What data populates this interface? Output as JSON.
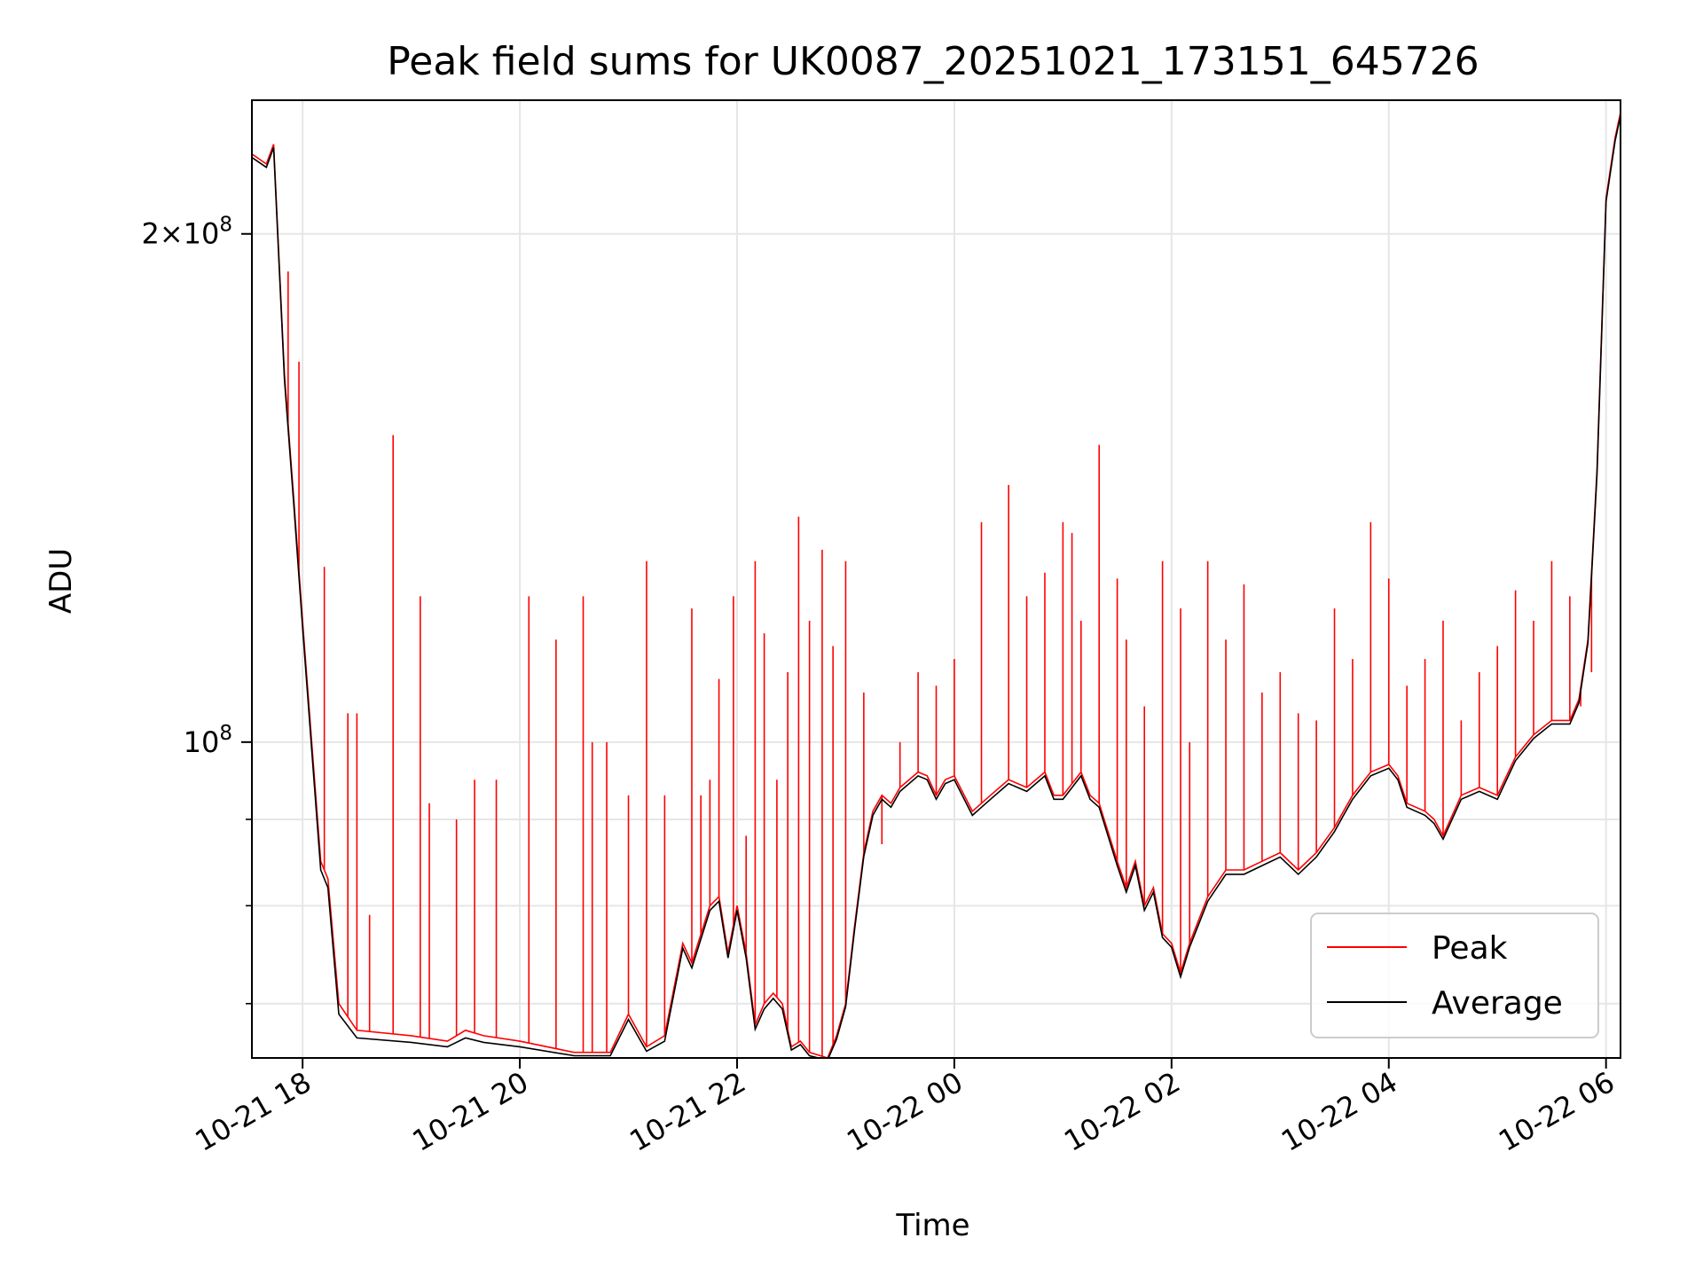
{
  "chart_data": {
    "type": "line",
    "title": "Peak field sums for UK0087_20251021_173151_645726",
    "xlabel": "Time",
    "ylabel": "ADU",
    "yscale": "log",
    "xlim": [
      "2025-10-21 17:32",
      "2025-10-22 06:08"
    ],
    "ylim": [
      65000000,
      240000000
    ],
    "grid": true,
    "legend_position": "bottom-right",
    "x_ticks": [
      {
        "value": "2025-10-21 18:00",
        "label": "10-21 18"
      },
      {
        "value": "2025-10-21 20:00",
        "label": "10-21 20"
      },
      {
        "value": "2025-10-21 22:00",
        "label": "10-21 22"
      },
      {
        "value": "2025-10-22 00:00",
        "label": "10-22 00"
      },
      {
        "value": "2025-10-22 02:00",
        "label": "10-22 02"
      },
      {
        "value": "2025-10-22 04:00",
        "label": "10-22 04"
      },
      {
        "value": "2025-10-22 06:00",
        "label": "10-22 06"
      }
    ],
    "y_major_ticks": [
      {
        "value": 100000000,
        "base": "10",
        "exp": "8",
        "mantissa": ""
      },
      {
        "value": 200000000,
        "base": "10",
        "exp": "8",
        "mantissa": "2"
      }
    ],
    "y_minor_ticks": [
      70000000,
      80000000,
      90000000
    ],
    "series": [
      {
        "name": "Peak",
        "color": "#ff0000",
        "x": [
          "2025-10-21 17:32",
          "2025-10-21 17:40",
          "2025-10-21 17:44",
          "2025-10-21 17:50",
          "2025-10-21 17:55",
          "2025-10-21 18:00",
          "2025-10-21 18:05",
          "2025-10-21 18:10",
          "2025-10-21 18:14",
          "2025-10-21 18:20",
          "2025-10-21 18:30",
          "2025-10-21 19:00",
          "2025-10-21 19:20",
          "2025-10-21 19:30",
          "2025-10-21 19:40",
          "2025-10-21 20:00",
          "2025-10-21 20:30",
          "2025-10-21 20:50",
          "2025-10-21 21:00",
          "2025-10-21 21:10",
          "2025-10-21 21:20",
          "2025-10-21 21:30",
          "2025-10-21 21:35",
          "2025-10-21 21:45",
          "2025-10-21 21:50",
          "2025-10-21 21:55",
          "2025-10-21 22:00",
          "2025-10-21 22:05",
          "2025-10-21 22:10",
          "2025-10-21 22:15",
          "2025-10-21 22:20",
          "2025-10-21 22:25",
          "2025-10-21 22:30",
          "2025-10-21 22:35",
          "2025-10-21 22:40",
          "2025-10-21 22:50",
          "2025-10-21 22:55",
          "2025-10-21 23:00",
          "2025-10-21 23:05",
          "2025-10-21 23:10",
          "2025-10-21 23:15",
          "2025-10-21 23:20",
          "2025-10-21 23:25",
          "2025-10-21 23:30",
          "2025-10-21 23:40",
          "2025-10-21 23:45",
          "2025-10-21 23:50",
          "2025-10-21 23:55",
          "2025-10-22 00:00",
          "2025-10-22 00:10",
          "2025-10-22 00:15",
          "2025-10-22 00:20",
          "2025-10-22 00:30",
          "2025-10-22 00:40",
          "2025-10-22 00:50",
          "2025-10-22 00:55",
          "2025-10-22 01:00",
          "2025-10-22 01:10",
          "2025-10-22 01:15",
          "2025-10-22 01:20",
          "2025-10-22 01:30",
          "2025-10-22 01:35",
          "2025-10-22 01:40",
          "2025-10-22 01:45",
          "2025-10-22 01:50",
          "2025-10-22 01:55",
          "2025-10-22 02:00",
          "2025-10-22 02:05",
          "2025-10-22 02:10",
          "2025-10-22 02:20",
          "2025-10-22 02:30",
          "2025-10-22 02:40",
          "2025-10-22 02:50",
          "2025-10-22 03:00",
          "2025-10-22 03:10",
          "2025-10-22 03:20",
          "2025-10-22 03:30",
          "2025-10-22 03:35",
          "2025-10-22 03:40",
          "2025-10-22 03:50",
          "2025-10-22 04:00",
          "2025-10-22 04:05",
          "2025-10-22 04:10",
          "2025-10-22 04:20",
          "2025-10-22 04:25",
          "2025-10-22 04:30",
          "2025-10-22 04:40",
          "2025-10-22 04:50",
          "2025-10-22 05:00",
          "2025-10-22 05:10",
          "2025-10-22 05:20",
          "2025-10-22 05:30",
          "2025-10-22 05:40",
          "2025-10-22 05:45",
          "2025-10-22 05:50",
          "2025-10-22 05:55",
          "2025-10-22 06:00",
          "2025-10-22 06:05",
          "2025-10-22 06:08"
        ],
        "y": [
          223000000,
          220000000,
          226000000,
          165000000,
          140000000,
          118000000,
          100000000,
          85000000,
          83000000,
          70000000,
          67500000,
          67000000,
          66500000,
          67500000,
          67000000,
          66500000,
          65500000,
          65500000,
          69000000,
          66000000,
          67000000,
          76000000,
          74000000,
          80000000,
          81000000,
          75000000,
          80000000,
          75000000,
          68000000,
          70000000,
          71000000,
          70000000,
          66000000,
          66500000,
          65500000,
          65000000,
          67000000,
          70000000,
          78000000,
          86000000,
          91000000,
          93000000,
          92000000,
          94000000,
          96000000,
          95500000,
          93000000,
          95000000,
          95500000,
          91000000,
          92000000,
          93000000,
          95000000,
          94000000,
          96000000,
          93000000,
          93000000,
          96000000,
          93000000,
          92000000,
          85000000,
          82000000,
          85000000,
          80000000,
          82000000,
          77000000,
          76000000,
          73000000,
          76000000,
          81000000,
          84000000,
          84000000,
          85000000,
          86000000,
          84000000,
          86000000,
          89000000,
          91000000,
          93000000,
          96000000,
          97000000,
          95500000,
          92000000,
          91000000,
          90000000,
          88000000,
          93000000,
          94000000,
          93000000,
          98000000,
          101000000,
          103000000,
          103000000,
          106000000,
          115000000,
          145000000,
          210000000,
          228000000,
          236000000
        ]
      },
      {
        "name": "Average",
        "color": "#000000",
        "x": [
          "2025-10-21 17:32",
          "2025-10-21 17:40",
          "2025-10-21 17:44",
          "2025-10-21 17:50",
          "2025-10-21 17:55",
          "2025-10-21 18:00",
          "2025-10-21 18:05",
          "2025-10-21 18:10",
          "2025-10-21 18:14",
          "2025-10-21 18:20",
          "2025-10-21 18:30",
          "2025-10-21 19:00",
          "2025-10-21 19:20",
          "2025-10-21 19:30",
          "2025-10-21 19:40",
          "2025-10-21 20:00",
          "2025-10-21 20:30",
          "2025-10-21 20:50",
          "2025-10-21 21:00",
          "2025-10-21 21:10",
          "2025-10-21 21:20",
          "2025-10-21 21:30",
          "2025-10-21 21:35",
          "2025-10-21 21:45",
          "2025-10-21 21:50",
          "2025-10-21 21:55",
          "2025-10-21 22:00",
          "2025-10-21 22:05",
          "2025-10-21 22:10",
          "2025-10-21 22:15",
          "2025-10-21 22:20",
          "2025-10-21 22:25",
          "2025-10-21 22:30",
          "2025-10-21 22:35",
          "2025-10-21 22:40",
          "2025-10-21 22:50",
          "2025-10-21 22:55",
          "2025-10-21 23:00",
          "2025-10-21 23:05",
          "2025-10-21 23:10",
          "2025-10-21 23:15",
          "2025-10-21 23:20",
          "2025-10-21 23:25",
          "2025-10-21 23:30",
          "2025-10-21 23:40",
          "2025-10-21 23:45",
          "2025-10-21 23:50",
          "2025-10-21 23:55",
          "2025-10-22 00:00",
          "2025-10-22 00:10",
          "2025-10-22 00:15",
          "2025-10-22 00:20",
          "2025-10-22 00:30",
          "2025-10-22 00:40",
          "2025-10-22 00:50",
          "2025-10-22 00:55",
          "2025-10-22 01:00",
          "2025-10-22 01:10",
          "2025-10-22 01:15",
          "2025-10-22 01:20",
          "2025-10-22 01:30",
          "2025-10-22 01:35",
          "2025-10-22 01:40",
          "2025-10-22 01:45",
          "2025-10-22 01:50",
          "2025-10-22 01:55",
          "2025-10-22 02:00",
          "2025-10-22 02:05",
          "2025-10-22 02:10",
          "2025-10-22 02:20",
          "2025-10-22 02:30",
          "2025-10-22 02:40",
          "2025-10-22 02:50",
          "2025-10-22 03:00",
          "2025-10-22 03:10",
          "2025-10-22 03:20",
          "2025-10-22 03:30",
          "2025-10-22 03:35",
          "2025-10-22 03:40",
          "2025-10-22 03:50",
          "2025-10-22 04:00",
          "2025-10-22 04:05",
          "2025-10-22 04:10",
          "2025-10-22 04:20",
          "2025-10-22 04:25",
          "2025-10-22 04:30",
          "2025-10-22 04:40",
          "2025-10-22 04:50",
          "2025-10-22 05:00",
          "2025-10-22 05:10",
          "2025-10-22 05:20",
          "2025-10-22 05:30",
          "2025-10-22 05:40",
          "2025-10-22 05:45",
          "2025-10-22 05:50",
          "2025-10-22 05:55",
          "2025-10-22 06:00",
          "2025-10-22 06:05",
          "2025-10-22 06:08"
        ],
        "y": [
          222000000,
          219000000,
          225000000,
          164000000,
          139000000,
          117000000,
          99000000,
          84000000,
          82000000,
          69000000,
          66800000,
          66400000,
          66000000,
          66800000,
          66400000,
          66000000,
          65200000,
          65200000,
          68500000,
          65600000,
          66500000,
          75500000,
          73500000,
          79500000,
          80500000,
          74500000,
          79500000,
          74500000,
          67600000,
          69500000,
          70500000,
          69500000,
          65700000,
          66200000,
          65200000,
          64800000,
          66700000,
          69700000,
          77600000,
          85600000,
          90500000,
          92500000,
          91500000,
          93500000,
          95500000,
          95000000,
          92500000,
          94500000,
          95000000,
          90500000,
          91500000,
          92500000,
          94500000,
          93500000,
          95500000,
          92500000,
          92500000,
          95500000,
          92500000,
          91500000,
          84500000,
          81500000,
          84500000,
          79500000,
          81500000,
          76600000,
          75600000,
          72600000,
          75600000,
          80500000,
          83500000,
          83500000,
          84500000,
          85500000,
          83500000,
          85500000,
          88500000,
          90500000,
          92500000,
          95500000,
          96500000,
          95000000,
          91500000,
          90500000,
          89500000,
          87600000,
          92500000,
          93500000,
          92500000,
          97500000,
          100500000,
          102500000,
          102500000,
          105500000,
          114500000,
          144000000,
          209000000,
          227000000,
          235000000
        ]
      }
    ],
    "peak_spikes": [
      {
        "x": "2025-10-21 17:52",
        "y": 190000000
      },
      {
        "x": "2025-10-21 17:58",
        "y": 168000000
      },
      {
        "x": "2025-10-21 18:12",
        "y": 127000000
      },
      {
        "x": "2025-10-21 18:25",
        "y": 104000000
      },
      {
        "x": "2025-10-21 18:30",
        "y": 104000000
      },
      {
        "x": "2025-10-21 18:37",
        "y": 79000000
      },
      {
        "x": "2025-10-21 18:50",
        "y": 152000000
      },
      {
        "x": "2025-10-21 19:05",
        "y": 122000000
      },
      {
        "x": "2025-10-21 19:10",
        "y": 92000000
      },
      {
        "x": "2025-10-21 19:25",
        "y": 90000000
      },
      {
        "x": "2025-10-21 19:35",
        "y": 95000000
      },
      {
        "x": "2025-10-21 19:47",
        "y": 95000000
      },
      {
        "x": "2025-10-21 20:05",
        "y": 122000000
      },
      {
        "x": "2025-10-21 20:20",
        "y": 115000000
      },
      {
        "x": "2025-10-21 20:35",
        "y": 122000000
      },
      {
        "x": "2025-10-21 20:40",
        "y": 100000000
      },
      {
        "x": "2025-10-21 20:48",
        "y": 100000000
      },
      {
        "x": "2025-10-21 21:00",
        "y": 93000000
      },
      {
        "x": "2025-10-21 21:10",
        "y": 128000000
      },
      {
        "x": "2025-10-21 21:20",
        "y": 93000000
      },
      {
        "x": "2025-10-21 21:35",
        "y": 120000000
      },
      {
        "x": "2025-10-21 21:40",
        "y": 93000000
      },
      {
        "x": "2025-10-21 21:45",
        "y": 95000000
      },
      {
        "x": "2025-10-21 21:50",
        "y": 109000000
      },
      {
        "x": "2025-10-21 21:58",
        "y": 122000000
      },
      {
        "x": "2025-10-21 22:05",
        "y": 88000000
      },
      {
        "x": "2025-10-21 22:10",
        "y": 128000000
      },
      {
        "x": "2025-10-21 22:15",
        "y": 116000000
      },
      {
        "x": "2025-10-21 22:22",
        "y": 95000000
      },
      {
        "x": "2025-10-21 22:28",
        "y": 110000000
      },
      {
        "x": "2025-10-21 22:34",
        "y": 136000000
      },
      {
        "x": "2025-10-21 22:40",
        "y": 118000000
      },
      {
        "x": "2025-10-21 22:47",
        "y": 130000000
      },
      {
        "x": "2025-10-21 22:53",
        "y": 114000000
      },
      {
        "x": "2025-10-21 23:00",
        "y": 128000000
      },
      {
        "x": "2025-10-21 23:10",
        "y": 107000000
      },
      {
        "x": "2025-10-21 23:20",
        "y": 87000000
      },
      {
        "x": "2025-10-21 23:30",
        "y": 100000000
      },
      {
        "x": "2025-10-21 23:40",
        "y": 110000000
      },
      {
        "x": "2025-10-21 23:50",
        "y": 108000000
      },
      {
        "x": "2025-10-22 00:00",
        "y": 112000000
      },
      {
        "x": "2025-10-22 00:15",
        "y": 135000000
      },
      {
        "x": "2025-10-22 00:30",
        "y": 142000000
      },
      {
        "x": "2025-10-22 00:40",
        "y": 122000000
      },
      {
        "x": "2025-10-22 00:50",
        "y": 126000000
      },
      {
        "x": "2025-10-22 01:00",
        "y": 135000000
      },
      {
        "x": "2025-10-22 01:05",
        "y": 133000000
      },
      {
        "x": "2025-10-22 01:10",
        "y": 118000000
      },
      {
        "x": "2025-10-22 01:20",
        "y": 150000000
      },
      {
        "x": "2025-10-22 01:30",
        "y": 125000000
      },
      {
        "x": "2025-10-22 01:35",
        "y": 115000000
      },
      {
        "x": "2025-10-22 01:45",
        "y": 105000000
      },
      {
        "x": "2025-10-22 01:55",
        "y": 128000000
      },
      {
        "x": "2025-10-22 02:05",
        "y": 120000000
      },
      {
        "x": "2025-10-22 02:10",
        "y": 100000000
      },
      {
        "x": "2025-10-22 02:20",
        "y": 128000000
      },
      {
        "x": "2025-10-22 02:30",
        "y": 115000000
      },
      {
        "x": "2025-10-22 02:40",
        "y": 124000000
      },
      {
        "x": "2025-10-22 02:50",
        "y": 107000000
      },
      {
        "x": "2025-10-22 03:00",
        "y": 110000000
      },
      {
        "x": "2025-10-22 03:10",
        "y": 104000000
      },
      {
        "x": "2025-10-22 03:20",
        "y": 103000000
      },
      {
        "x": "2025-10-22 03:30",
        "y": 120000000
      },
      {
        "x": "2025-10-22 03:40",
        "y": 112000000
      },
      {
        "x": "2025-10-22 03:50",
        "y": 135000000
      },
      {
        "x": "2025-10-22 04:00",
        "y": 125000000
      },
      {
        "x": "2025-10-22 04:10",
        "y": 108000000
      },
      {
        "x": "2025-10-22 04:20",
        "y": 112000000
      },
      {
        "x": "2025-10-22 04:30",
        "y": 118000000
      },
      {
        "x": "2025-10-22 04:40",
        "y": 103000000
      },
      {
        "x": "2025-10-22 04:50",
        "y": 110000000
      },
      {
        "x": "2025-10-22 05:00",
        "y": 114000000
      },
      {
        "x": "2025-10-22 05:10",
        "y": 123000000
      },
      {
        "x": "2025-10-22 05:20",
        "y": 118000000
      },
      {
        "x": "2025-10-22 05:30",
        "y": 128000000
      },
      {
        "x": "2025-10-22 05:40",
        "y": 122000000
      },
      {
        "x": "2025-10-22 05:46",
        "y": 105000000
      },
      {
        "x": "2025-10-22 05:52",
        "y": 110000000
      }
    ]
  }
}
